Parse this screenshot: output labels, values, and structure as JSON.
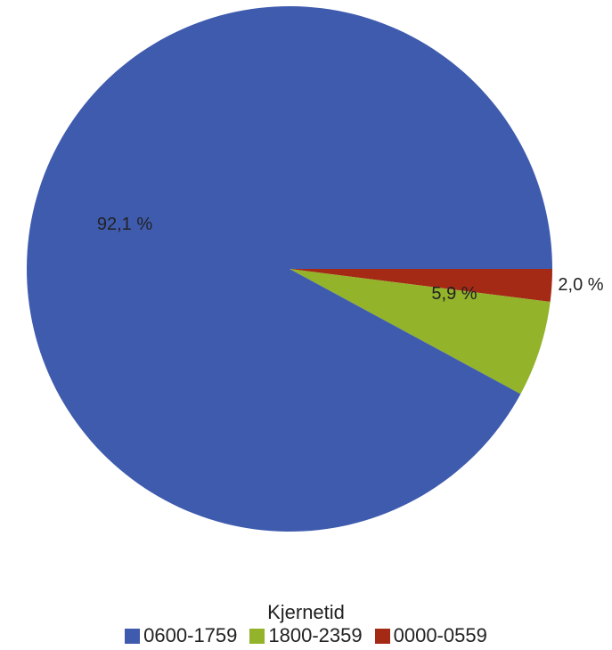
{
  "chart_data": {
    "type": "pie",
    "title": "",
    "categories": [
      "0600-1759",
      "1800-2359",
      "0000-0559"
    ],
    "values": [
      92.1,
      5.9,
      2.0
    ],
    "labels": [
      "92,1 %",
      "5,9 %",
      "2,0 %"
    ],
    "colors": [
      "#3F5BAE",
      "#92B32A",
      "#A42A16"
    ],
    "legend": {
      "title": "Kjernetid",
      "placement": "bottom"
    }
  }
}
